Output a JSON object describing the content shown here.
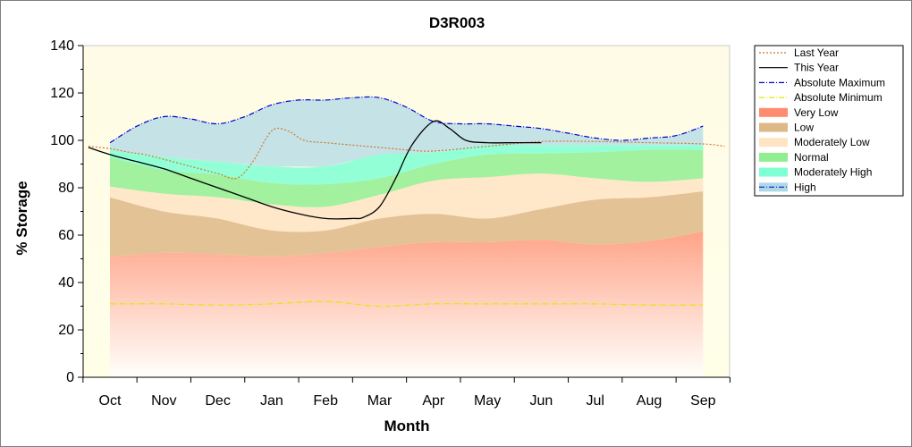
{
  "chart_data": {
    "type": "area",
    "title": "D3R003",
    "xlabel": "Month",
    "ylabel": "% Storage",
    "ylim": [
      0,
      140
    ],
    "yticks": [
      0,
      20,
      40,
      60,
      80,
      100,
      120,
      140
    ],
    "categories": [
      "Oct",
      "Nov",
      "Dec",
      "Jan",
      "Feb",
      "Mar",
      "Apr",
      "May",
      "Jun",
      "Jul",
      "Aug",
      "Sep"
    ],
    "legend_position": "right",
    "series": [
      {
        "name": "Last Year",
        "kind": "line",
        "color": "#c87832",
        "dash": "dotted",
        "x": [
          -0.4,
          0,
          0.35,
          0.65,
          1.0,
          1.5,
          2.0,
          2.35,
          2.65,
          3.0,
          3.3,
          3.6,
          4.0,
          4.5,
          5.0,
          5.5,
          6.0,
          7.0,
          8.0,
          9.0,
          10.0,
          11.0,
          11.4
        ],
        "y": [
          97.5,
          96.5,
          95,
          94,
          92,
          89,
          86,
          84,
          91,
          104,
          104,
          100,
          99,
          98,
          97,
          96,
          95.5,
          97.5,
          99.5,
          99.5,
          99,
          98.5,
          97.5
        ]
      },
      {
        "name": "This Year",
        "kind": "line",
        "color": "#000000",
        "dash": "solid",
        "x": [
          -0.4,
          0,
          0.5,
          1.0,
          1.5,
          2.0,
          2.5,
          3.0,
          3.5,
          4.0,
          4.5,
          4.7,
          5.0,
          5.3,
          5.6,
          6.0,
          6.3,
          6.6,
          7.0,
          7.5,
          8.0
        ],
        "y": [
          97,
          94,
          91,
          88,
          84,
          80,
          76,
          72,
          69,
          67,
          67,
          67.5,
          72,
          84,
          98,
          108,
          105,
          100,
          99,
          99,
          99
        ]
      },
      {
        "name": "Absolute Maximum",
        "kind": "line",
        "color": "#0000cc",
        "dash": "dashdot",
        "x": [
          0,
          0.5,
          1.0,
          1.5,
          2.0,
          2.5,
          3.0,
          3.5,
          4.0,
          4.5,
          5.0,
          5.5,
          6.0,
          6.5,
          7.0,
          7.5,
          8.0,
          8.5,
          9.0,
          9.5,
          10.0,
          10.5,
          11.0
        ],
        "y": [
          99,
          106,
          110,
          109,
          107,
          110,
          115,
          117,
          117,
          118,
          118,
          114,
          108,
          107,
          107,
          106,
          105,
          103,
          101,
          100,
          101,
          102,
          106
        ]
      },
      {
        "name": "Absolute Minimum",
        "kind": "line",
        "color": "#e6e600",
        "dash": "dashdot",
        "x": [
          0,
          1,
          2,
          3,
          4,
          5,
          6,
          7,
          8,
          9,
          10,
          11
        ],
        "y": [
          31,
          31,
          30.5,
          31,
          32,
          30,
          31,
          31,
          31,
          31,
          30.5,
          30.5
        ]
      },
      {
        "name": "Very Low",
        "kind": "band",
        "color": "#ff8c6e",
        "x": [
          0,
          1,
          2,
          3,
          4,
          5,
          6,
          7,
          8,
          9,
          10,
          11
        ],
        "lower": [
          0,
          0,
          0,
          0,
          0,
          0,
          0,
          0,
          0,
          0,
          0,
          0
        ],
        "upper": [
          51,
          52.5,
          52,
          51,
          52.5,
          55,
          57,
          57,
          58,
          56,
          57.5,
          61.5
        ]
      },
      {
        "name": "Low",
        "kind": "band",
        "color": "#deb887",
        "x": [
          0,
          1,
          2,
          3,
          4,
          5,
          6,
          7,
          8,
          9,
          10,
          11
        ],
        "lower": [
          51,
          52.5,
          52,
          51,
          52.5,
          55,
          57,
          57,
          58,
          56,
          57.5,
          61.5
        ],
        "upper": [
          76,
          70,
          67,
          62,
          62,
          67,
          69,
          67,
          71,
          75,
          76,
          78.5
        ]
      },
      {
        "name": "Moderately Low",
        "kind": "band",
        "color": "#ffe4c4",
        "x": [
          0,
          1,
          2,
          3,
          4,
          5,
          6,
          7,
          8,
          9,
          10,
          11
        ],
        "lower": [
          76,
          70,
          67,
          62,
          62,
          67,
          69,
          67,
          71,
          75,
          76,
          78.5
        ],
        "upper": [
          80.5,
          77.5,
          76,
          73,
          72,
          77,
          83,
          84.5,
          86,
          84,
          82.5,
          84
        ]
      },
      {
        "name": "Normal",
        "kind": "band",
        "color": "#90ee90",
        "x": [
          0,
          1,
          2,
          3,
          4,
          5,
          6,
          7,
          8,
          9,
          10,
          11
        ],
        "lower": [
          80.5,
          77.5,
          76,
          73,
          72,
          77,
          83,
          84.5,
          86,
          84,
          82.5,
          84
        ],
        "upper": [
          93,
          87.5,
          85.5,
          82,
          81.5,
          84,
          90,
          94,
          94.5,
          95,
          96,
          96
        ]
      },
      {
        "name": "Moderately High",
        "kind": "band",
        "color": "#7fffd4",
        "x": [
          0,
          1,
          2,
          3,
          4,
          5,
          6,
          7,
          8,
          9,
          10,
          11
        ],
        "lower": [
          93,
          87.5,
          85.5,
          82,
          81.5,
          84,
          90,
          94,
          94.5,
          95,
          96,
          96
        ],
        "upper": [
          96,
          93,
          91,
          89,
          89,
          94,
          95,
          98,
          98,
          98,
          98,
          98
        ]
      },
      {
        "name": "High",
        "kind": "band",
        "color": "#add8e6",
        "x": [
          0,
          0.5,
          1.0,
          1.5,
          2.0,
          2.5,
          3.0,
          3.5,
          4.0,
          4.5,
          5.0,
          5.5,
          6.0,
          6.5,
          7.0,
          7.5,
          8.0,
          8.5,
          9.0,
          9.5,
          10.0,
          10.5,
          11.0
        ],
        "lower": [
          96,
          94.5,
          93,
          92,
          91,
          90,
          89,
          89,
          89,
          91.5,
          94,
          94.5,
          95,
          96.5,
          98,
          98,
          98,
          98,
          98,
          98,
          98,
          98,
          98
        ],
        "upper": [
          99,
          106,
          110,
          109,
          107,
          110,
          115,
          117,
          117,
          118,
          118,
          114,
          108,
          107,
          107,
          106,
          105,
          103,
          101,
          100,
          101,
          102,
          106
        ]
      }
    ]
  }
}
